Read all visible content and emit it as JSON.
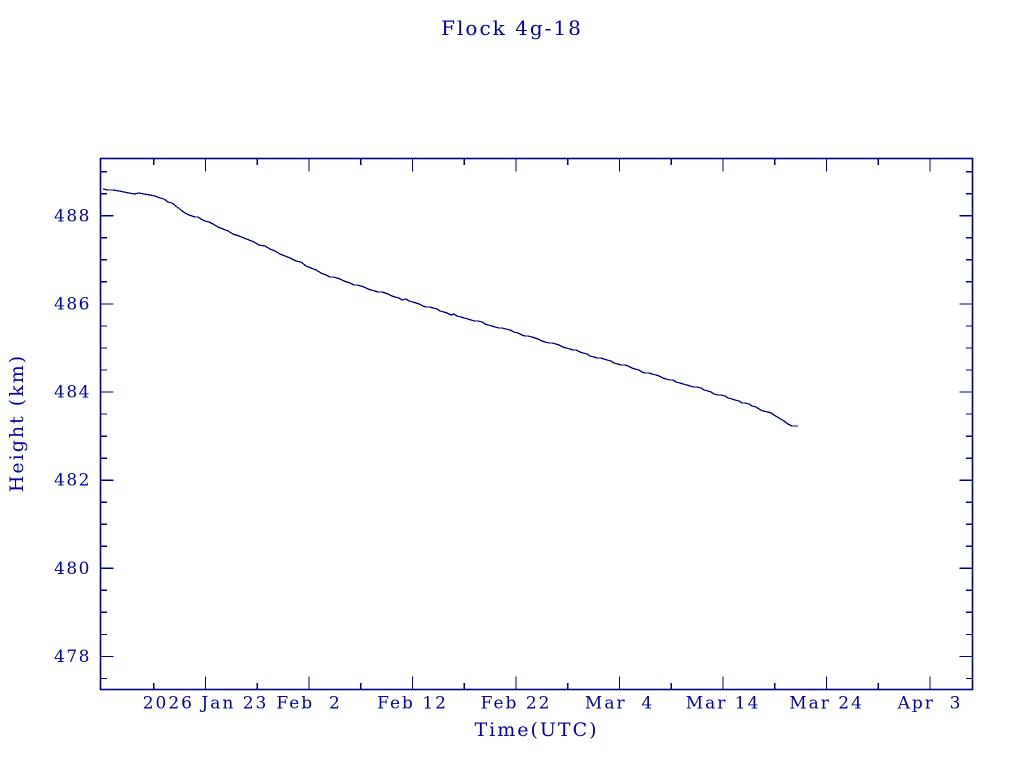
{
  "page": {
    "title": "Flock 4g-18"
  },
  "chart_data": {
    "type": "line",
    "title": "Flock 4g-18",
    "xlabel": "Time(UTC)",
    "ylabel": "Height (km)",
    "grid": false,
    "legend": "none",
    "colors": {
      "axis": "#000080",
      "line": "#000080",
      "text": "#0000A8",
      "background": "#FFFFFF"
    },
    "x_axis": {
      "unit": "days relative to 2026 Jan 23 (UTC)",
      "lim": [
        -10.15,
        74.1
      ],
      "major_ticks": [
        {
          "day": 0,
          "label": "2026 Jan 23"
        },
        {
          "day": 10,
          "label": "Feb  2"
        },
        {
          "day": 20,
          "label": "Feb 12"
        },
        {
          "day": 30,
          "label": "Feb 22"
        },
        {
          "day": 40,
          "label": "Mar  4"
        },
        {
          "day": 50,
          "label": "Mar 14"
        },
        {
          "day": 60,
          "label": "Mar 24"
        },
        {
          "day": 70,
          "label": "Apr  3"
        }
      ],
      "minor_tick_days": [
        -5,
        5,
        15,
        25,
        35,
        45,
        55,
        65
      ]
    },
    "y_axis": {
      "unit": "km",
      "lim": [
        477.25,
        489.3
      ],
      "major_ticks": [
        {
          "value": 488,
          "label": "488"
        },
        {
          "value": 486,
          "label": "486"
        },
        {
          "value": 484,
          "label": "484"
        },
        {
          "value": 482,
          "label": "482"
        },
        {
          "value": 480,
          "label": "480"
        },
        {
          "value": 478,
          "label": "478"
        }
      ],
      "minor_tick_start": 477.5,
      "minor_tick_end": 489.0,
      "minor_tick_step": 0.5
    },
    "series": [
      {
        "name": "Flock 4g-18 orbital height",
        "color": "#000080",
        "points_day_km": [
          [
            -9.9,
            488.59
          ],
          [
            -9.4,
            488.58
          ],
          [
            -8.9,
            488.57
          ],
          [
            -8.4,
            488.56
          ],
          [
            -7.9,
            488.55
          ],
          [
            -7.4,
            488.53
          ],
          [
            -6.9,
            488.51
          ],
          [
            -6.4,
            488.5
          ],
          [
            -5.9,
            488.48
          ],
          [
            -5.4,
            488.46
          ],
          [
            -4.9,
            488.44
          ],
          [
            -4.4,
            488.41
          ],
          [
            -4.0,
            488.38
          ],
          [
            -3.6,
            488.33
          ],
          [
            -3.2,
            488.27
          ],
          [
            -2.8,
            488.2
          ],
          [
            -2.4,
            488.13
          ],
          [
            -2.0,
            488.07
          ],
          [
            -1.6,
            488.02
          ],
          [
            -1.3,
            488.0
          ],
          [
            -1.0,
            487.98
          ],
          [
            -0.7,
            487.96
          ],
          [
            -0.4,
            487.92
          ],
          [
            -0.1,
            487.88
          ],
          [
            0.3,
            487.85
          ],
          [
            0.7,
            487.81
          ],
          [
            1.2,
            487.76
          ],
          [
            1.7,
            487.71
          ],
          [
            2.2,
            487.64
          ],
          [
            2.7,
            487.58
          ],
          [
            3.2,
            487.53
          ],
          [
            3.7,
            487.49
          ],
          [
            4.2,
            487.45
          ],
          [
            4.7,
            487.41
          ],
          [
            5.2,
            487.35
          ],
          [
            5.7,
            487.3
          ],
          [
            6.2,
            487.24
          ],
          [
            6.7,
            487.19
          ],
          [
            7.2,
            487.14
          ],
          [
            7.7,
            487.1
          ],
          [
            8.2,
            487.05
          ],
          [
            8.7,
            486.99
          ],
          [
            9.2,
            486.93
          ],
          [
            9.7,
            486.86
          ],
          [
            10.2,
            486.8
          ],
          [
            10.7,
            486.76
          ],
          [
            11.2,
            486.71
          ],
          [
            12.0,
            486.62
          ],
          [
            13.0,
            486.55
          ],
          [
            14.0,
            486.48
          ],
          [
            15.0,
            486.4
          ],
          [
            16.0,
            486.32
          ],
          [
            17.0,
            486.25
          ],
          [
            18.0,
            486.19
          ],
          [
            19.0,
            486.11
          ],
          [
            20.0,
            486.04
          ],
          [
            21.0,
            485.97
          ],
          [
            22.0,
            485.9
          ],
          [
            23.0,
            485.82
          ],
          [
            24.0,
            485.75
          ],
          [
            25.0,
            485.68
          ],
          [
            26.0,
            485.62
          ],
          [
            27.0,
            485.55
          ],
          [
            28.0,
            485.49
          ],
          [
            29.0,
            485.43
          ],
          [
            29.8,
            485.37
          ],
          [
            30.6,
            485.3
          ],
          [
            31.5,
            485.24
          ],
          [
            32.5,
            485.17
          ],
          [
            33.5,
            485.1
          ],
          [
            34.5,
            485.03
          ],
          [
            35.5,
            484.96
          ],
          [
            36.5,
            484.88
          ],
          [
            37.5,
            484.81
          ],
          [
            38.5,
            484.74
          ],
          [
            39.5,
            484.67
          ],
          [
            40.5,
            484.6
          ],
          [
            41.5,
            484.52
          ],
          [
            42.5,
            484.45
          ],
          [
            43.5,
            484.38
          ],
          [
            44.5,
            484.31
          ],
          [
            45.5,
            484.23
          ],
          [
            46.5,
            484.16
          ],
          [
            47.5,
            484.1
          ],
          [
            48.5,
            484.02
          ],
          [
            49.5,
            483.95
          ],
          [
            50.5,
            483.87
          ],
          [
            51.5,
            483.8
          ],
          [
            52.5,
            483.71
          ],
          [
            53.5,
            483.63
          ],
          [
            54.3,
            483.55
          ],
          [
            54.9,
            483.48
          ],
          [
            55.4,
            483.41
          ],
          [
            55.9,
            483.34
          ],
          [
            56.3,
            483.29
          ],
          [
            56.7,
            483.25
          ],
          [
            57.0,
            483.24
          ],
          [
            57.2,
            483.23
          ]
        ]
      }
    ]
  }
}
